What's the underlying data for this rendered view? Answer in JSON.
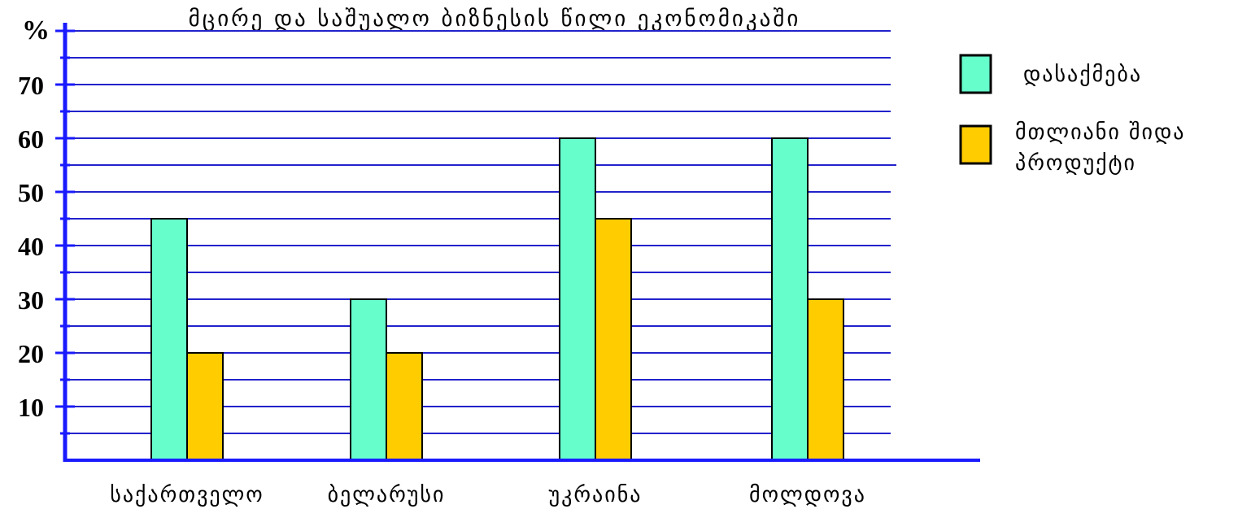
{
  "chart_data": {
    "type": "bar",
    "title": "მცირე და საშუალო ბიზნესის წილი ეკონომიკაში",
    "ylabel": "%",
    "categories": [
      "საქართველო",
      "ბელარუსი",
      "უკრაინა",
      "მოლდოვა"
    ],
    "series": [
      {
        "name": "დასაქმება",
        "color": "#66ffcc",
        "values": [
          45,
          30,
          60,
          60
        ]
      },
      {
        "name": "მთლიანი შიდა პროდუქტი",
        "name_lines": [
          "მთლიანი შიდა",
          "პროდუქტი"
        ],
        "color": "#ffcc00",
        "values": [
          20,
          20,
          45,
          30
        ]
      }
    ],
    "ylim": [
      0,
      80
    ],
    "yticks": [
      "10",
      "20",
      "30",
      "40",
      "50",
      "60",
      "70"
    ],
    "grid": true,
    "legend": "right",
    "colors": {
      "axis": "#1a1aff",
      "grid": "#2222cc"
    }
  }
}
